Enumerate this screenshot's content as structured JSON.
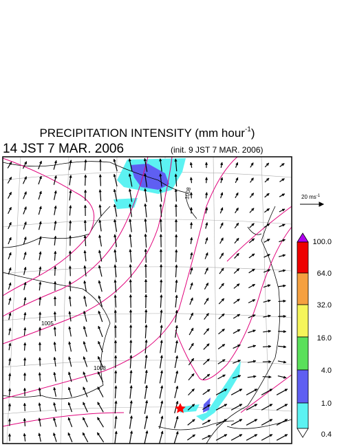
{
  "title": {
    "text": "PRECIPITATION INTENSITY (mm hour",
    "superscript": "-1",
    "close": ")"
  },
  "valid_time": "14 JST 7 MAR. 2006",
  "init_time": "(init. 9 JST 7 MAR. 2006)",
  "vector_scale": {
    "text": "20 ms",
    "superscript": "-1"
  },
  "contour_labels": [
    "1005",
    "1008",
    "1008"
  ],
  "colorbar_labels": [
    "100.0",
    "64.0",
    "32.0",
    "16.0",
    "4.0",
    "1.0",
    "0.4"
  ]
}
